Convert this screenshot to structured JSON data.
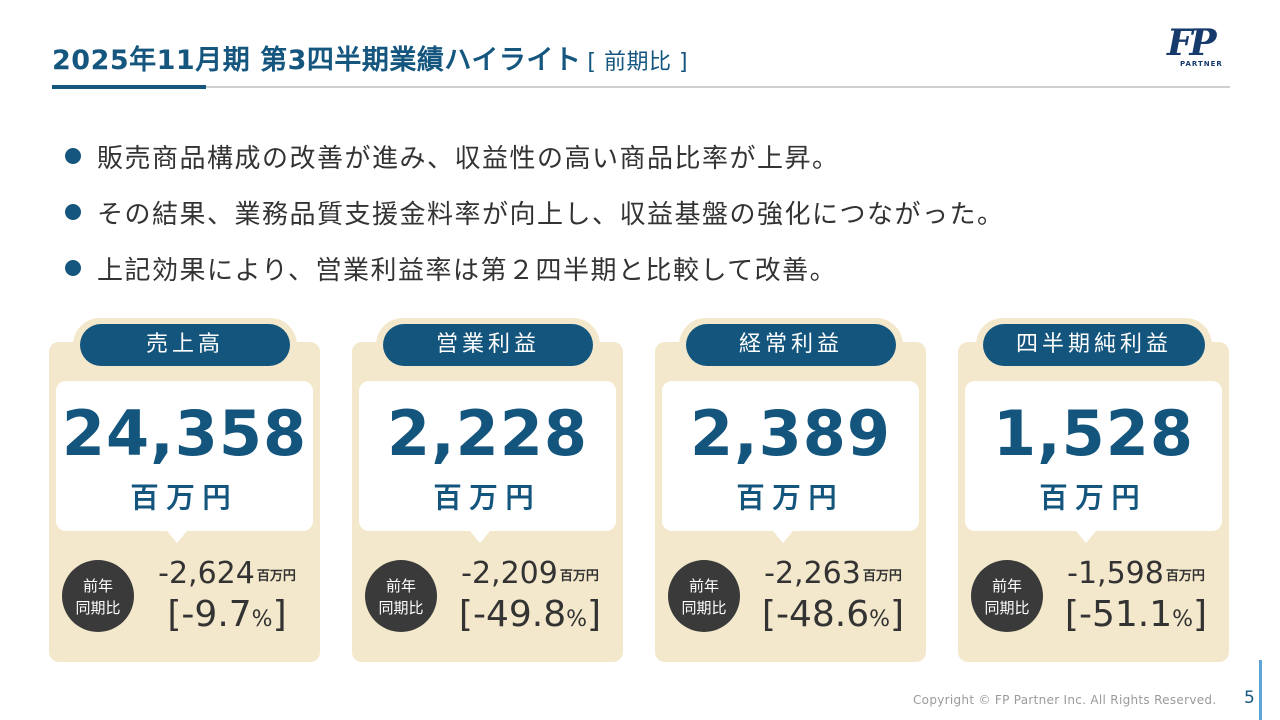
{
  "header": {
    "title": "2025年11月期 第3四半期業績ハイライト",
    "subtitle": "[ 前期比 ]",
    "logo_text": "FP",
    "logo_sub": "PARTNER"
  },
  "bullets": [
    "販売商品構成の改善が進み、収益性の高い商品比率が上昇。",
    "その結果、業務品質支援金料率が向上し、収益基盤の強化につながった。",
    "上記効果により、営業利益率は第２四半期と比較して改善。"
  ],
  "cards": [
    {
      "label": "売上高",
      "value": "24,358",
      "unit": "百万円",
      "yoy_line1": "前年",
      "yoy_line2": "同期比",
      "diff": "-2,624",
      "diff_unit": "百万円",
      "pct": "-9.7",
      "pct_sym": "%"
    },
    {
      "label": "営業利益",
      "value": "2,228",
      "unit": "百万円",
      "yoy_line1": "前年",
      "yoy_line2": "同期比",
      "diff": "-2,209",
      "diff_unit": "百万円",
      "pct": "-49.8",
      "pct_sym": "%"
    },
    {
      "label": "経常利益",
      "value": "2,389",
      "unit": "百万円",
      "yoy_line1": "前年",
      "yoy_line2": "同期比",
      "diff": "-2,263",
      "diff_unit": "百万円",
      "pct": "-48.6",
      "pct_sym": "%"
    },
    {
      "label": "四半期純利益",
      "value": "1,528",
      "unit": "百万円",
      "yoy_line1": "前年",
      "yoy_line2": "同期比",
      "diff": "-1,598",
      "diff_unit": "百万円",
      "pct": "-51.1",
      "pct_sym": "%"
    }
  ],
  "footer": {
    "copyright": "Copyright © FP Partner Inc. All Rights Reserved.",
    "page": "5"
  },
  "colors": {
    "primary": "#14557e",
    "card_bg": "#f3e8cb",
    "yoy_circle": "#3a3a3a"
  }
}
